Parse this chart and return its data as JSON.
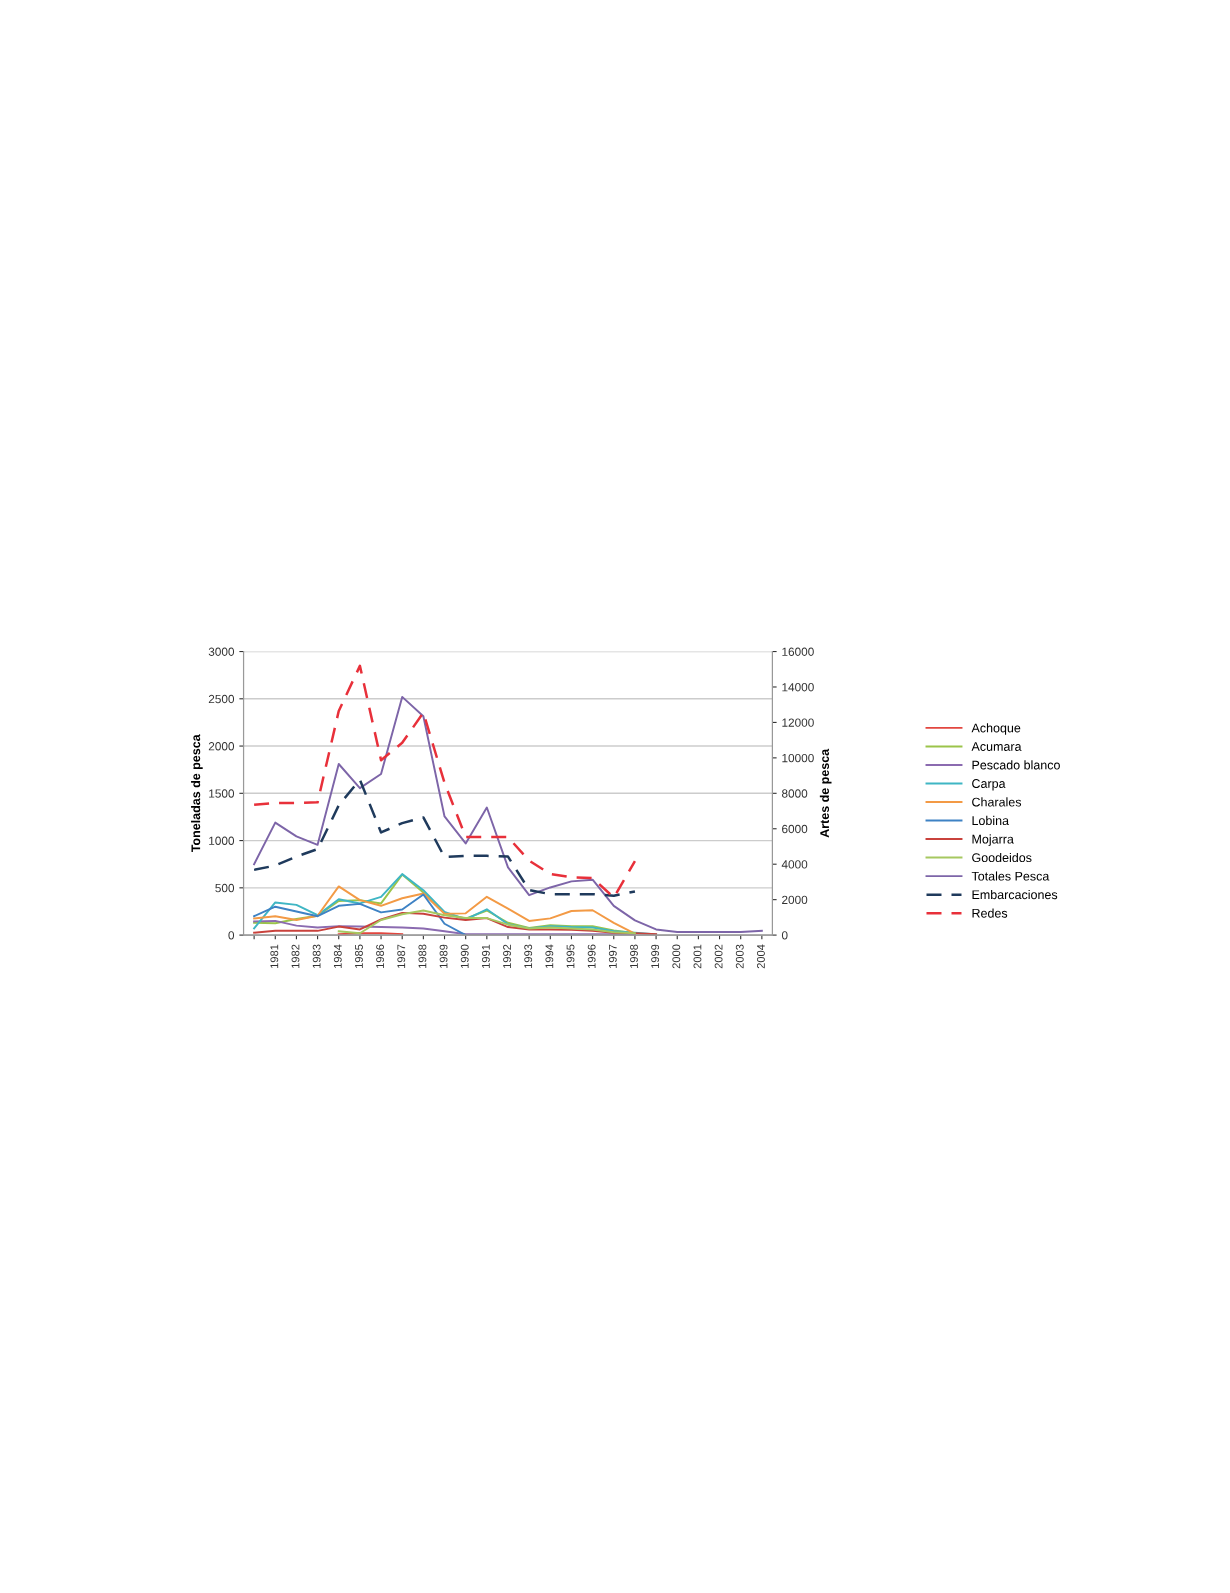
{
  "chart_data": {
    "type": "line",
    "ylabel": "Toneladas de pesca",
    "y2label": "Artes de pesca",
    "categories": [
      null,
      "1981",
      "1982",
      "1983",
      "1984",
      "1985",
      "1986",
      "1987",
      "1988",
      "1989",
      "1990",
      "1991",
      "1992",
      "1993",
      "1994",
      "1995",
      "1996",
      "1997",
      "1998",
      "1999",
      "2000",
      "2001",
      "2002",
      "2003",
      "2004"
    ],
    "ylim": [
      0,
      3000
    ],
    "yticks": [
      0,
      500,
      1000,
      1500,
      2000,
      2500,
      3000
    ],
    "y2lim": [
      0,
      16000
    ],
    "y2ticks": [
      0,
      2000,
      4000,
      6000,
      8000,
      10000,
      12000,
      14000,
      16000
    ],
    "grid": "y",
    "legend": "right",
    "marker": "none",
    "series": [
      {
        "name": "Achoque",
        "color": "#e2463f",
        "values": [
          null,
          null,
          null,
          null,
          10,
          20,
          20,
          10,
          null,
          null,
          null,
          null,
          null,
          null,
          null,
          null,
          null,
          null,
          null,
          null,
          null,
          null,
          null,
          null,
          null
        ]
      },
      {
        "name": "Acumara",
        "color": "#9bc44a",
        "values": [
          130,
          125,
          170,
          205,
          360,
          370,
          335,
          640,
          450,
          230,
          175,
          260,
          130,
          75,
          105,
          95,
          95,
          50,
          20,
          null,
          null,
          null,
          null,
          null,
          null
        ]
      },
      {
        "name": "Pescado blanco",
        "color": "#8b6bb0",
        "values": [
          145,
          150,
          100,
          80,
          95,
          90,
          85,
          80,
          70,
          40,
          10,
          10,
          10,
          10,
          10,
          10,
          10,
          10,
          10,
          null,
          null,
          null,
          null,
          null,
          null
        ]
      },
      {
        "name": "Carpa",
        "color": "#3fb6c4",
        "values": [
          70,
          345,
          320,
          210,
          380,
          335,
          405,
          645,
          475,
          245,
          165,
          273,
          115,
          70,
          95,
          85,
          80,
          40,
          25,
          7,
          null,
          null,
          null,
          null,
          null
        ]
      },
      {
        "name": "Charales",
        "color": "#f39a45",
        "values": [
          175,
          200,
          160,
          205,
          515,
          370,
          310,
          390,
          440,
          225,
          230,
          405,
          280,
          150,
          177,
          255,
          263,
          130,
          15,
          null,
          null,
          null,
          null,
          null,
          null
        ]
      },
      {
        "name": "Lobina",
        "color": "#3e82c4",
        "values": [
          200,
          300,
          250,
          200,
          310,
          330,
          240,
          270,
          430,
          120,
          0,
          null,
          null,
          null,
          null,
          null,
          null,
          null,
          null,
          null,
          null,
          null,
          null,
          null,
          null
        ]
      },
      {
        "name": "Mojarra",
        "color": "#c9423c",
        "values": [
          25,
          45,
          45,
          45,
          90,
          60,
          165,
          235,
          225,
          185,
          160,
          180,
          85,
          60,
          60,
          55,
          45,
          25,
          20,
          10,
          null,
          null,
          null,
          null,
          null
        ]
      },
      {
        "name": "Goodeidos",
        "color": "#a6c860",
        "values": [
          null,
          null,
          null,
          null,
          40,
          20,
          160,
          220,
          260,
          210,
          180,
          180,
          110,
          70,
          80,
          70,
          60,
          30,
          20,
          null,
          null,
          null,
          null,
          null,
          null
        ]
      },
      {
        "name": "Totales Pesca",
        "color": "#7d65a8",
        "values": [
          750,
          1190,
          1045,
          955,
          1810,
          1555,
          1705,
          2520,
          2315,
          1255,
          970,
          1350,
          717,
          422,
          504,
          568,
          586,
          309,
          156,
          60,
          32,
          32,
          32,
          32,
          46
        ]
      },
      {
        "name": "Embarcaciones",
        "color": "#1f3a5c",
        "axis": "y2",
        "line_style": "dashed",
        "values": [
          3680,
          3925,
          4430,
          4850,
          7320,
          8770,
          5790,
          6320,
          6640,
          4400,
          4470,
          4470,
          4430,
          2540,
          2310,
          2310,
          2310,
          2220,
          2460,
          null,
          null,
          null,
          null,
          null,
          null
        ]
      },
      {
        "name": "Redes",
        "color": "#e8303a",
        "axis": "y2",
        "line_style": "dashed",
        "values": [
          7360,
          7450,
          7450,
          7490,
          12640,
          15190,
          9870,
          10850,
          12550,
          8590,
          5530,
          5530,
          5530,
          4200,
          3450,
          3260,
          3220,
          2120,
          4170,
          null,
          null,
          null,
          null,
          null,
          null
        ]
      }
    ]
  }
}
